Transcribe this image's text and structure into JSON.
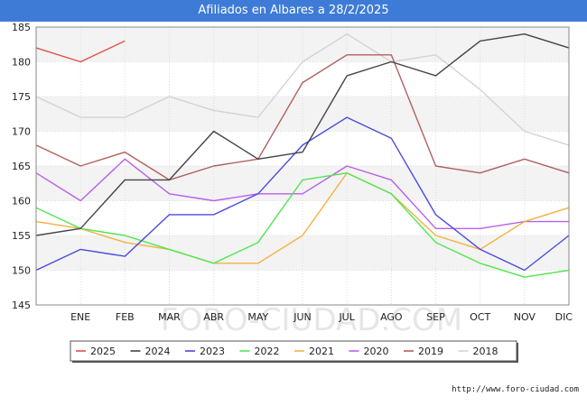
{
  "header": {
    "title": "Afiliados en Albares a 28/2/2025"
  },
  "footer": {
    "credit": "http://www.foro-ciudad.com"
  },
  "watermark": "FORO-CIUDAD.COM",
  "chart_data": {
    "type": "line",
    "title": "Afiliados en Albares a 28/2/2025",
    "xlabel": "",
    "ylabel": "",
    "categories": [
      "",
      "ENE",
      "FEB",
      "MAR",
      "ABR",
      "MAY",
      "JUN",
      "JUL",
      "AGO",
      "SEP",
      "OCT",
      "NOV",
      "DIC"
    ],
    "ylim": [
      145,
      185
    ],
    "yticks": [
      145,
      150,
      155,
      160,
      165,
      170,
      175,
      180,
      185
    ],
    "grid": true,
    "legend_position": "bottom",
    "series": [
      {
        "name": "2018",
        "color": "#d3d3d3",
        "values": [
          175,
          172,
          172,
          175,
          173,
          172,
          180,
          184,
          180,
          181,
          176,
          170,
          168
        ]
      },
      {
        "name": "2019",
        "color": "#b06060",
        "values": [
          168,
          165,
          167,
          163,
          165,
          166,
          177,
          181,
          181,
          165,
          164,
          166,
          164
        ]
      },
      {
        "name": "2020",
        "color": "#b860e8",
        "values": [
          164,
          160,
          166,
          161,
          160,
          161,
          161,
          165,
          163,
          156,
          156,
          157,
          157
        ]
      },
      {
        "name": "2021",
        "color": "#f5b041",
        "values": [
          157,
          156,
          154,
          153,
          151,
          151,
          155,
          164,
          161,
          155,
          153,
          157,
          159
        ]
      },
      {
        "name": "2022",
        "color": "#50e650",
        "values": [
          159,
          156,
          155,
          153,
          151,
          154,
          163,
          164,
          161,
          154,
          151,
          149,
          150
        ]
      },
      {
        "name": "2023",
        "color": "#4a4ae0",
        "values": [
          150,
          153,
          152,
          158,
          158,
          161,
          168,
          172,
          169,
          158,
          153,
          150,
          155
        ]
      },
      {
        "name": "2024",
        "color": "#444444",
        "values": [
          155,
          156,
          163,
          163,
          170,
          166,
          167,
          178,
          180,
          178,
          183,
          184,
          182
        ]
      },
      {
        "name": "2025",
        "color": "#e05050",
        "values": [
          182,
          180,
          183,
          null,
          null,
          null,
          null,
          null,
          null,
          null,
          null,
          null,
          null
        ]
      }
    ],
    "legend_order": [
      "2025",
      "2024",
      "2023",
      "2022",
      "2021",
      "2020",
      "2019",
      "2018"
    ]
  }
}
